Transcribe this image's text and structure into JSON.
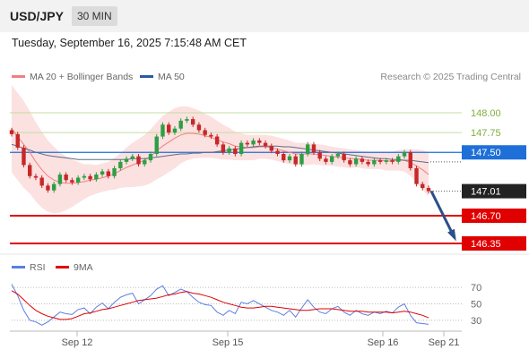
{
  "header": {
    "symbol": "USD/JPY",
    "timeframe": "30 MIN"
  },
  "datetime": "Tuesday, September 16, 2025 7:15:48 AM CET",
  "legend": {
    "ma20": {
      "label": "MA 20 + Bollinger Bands",
      "color": "#f08080"
    },
    "ma50": {
      "label": "MA 50",
      "color": "#2c5aa0"
    },
    "credit": "Research © 2025 Trading Central"
  },
  "rsi_legend": {
    "rsi": {
      "label": "RSI",
      "color": "#5b7fde"
    },
    "ma": {
      "label": "9MA",
      "color": "#e00000"
    }
  },
  "chart_data": {
    "type": "candlestick",
    "x_ticks": [
      "Sep 12",
      "Sep 15",
      "Sep 16",
      "Sep 21"
    ],
    "ylim": [
      146.25,
      148.2
    ],
    "levels": [
      {
        "label": "148.00",
        "value": 148.0,
        "kind": "resistance",
        "color": "#7fb03c"
      },
      {
        "label": "147.75",
        "value": 147.75,
        "kind": "resistance",
        "color": "#7fb03c"
      },
      {
        "label": "147.50",
        "value": 147.5,
        "kind": "pivot",
        "color": "#1e6fd8"
      },
      {
        "label": "147.01",
        "value": 147.01,
        "kind": "last",
        "color": "#222222"
      },
      {
        "label": "146.70",
        "value": 146.7,
        "kind": "support",
        "color": "#e00000"
      },
      {
        "label": "146.35",
        "value": 146.35,
        "kind": "support",
        "color": "#e00000"
      }
    ],
    "price": [
      147.73,
      147.56,
      147.34,
      147.2,
      147.18,
      147.08,
      147.02,
      147.1,
      147.22,
      147.15,
      147.12,
      147.18,
      147.2,
      147.16,
      147.22,
      147.26,
      147.2,
      147.3,
      147.38,
      147.42,
      147.45,
      147.35,
      147.4,
      147.48,
      147.7,
      147.85,
      147.75,
      147.8,
      147.9,
      147.92,
      147.85,
      147.78,
      147.72,
      147.7,
      147.6,
      147.5,
      147.55,
      147.48,
      147.62,
      147.6,
      147.65,
      147.62,
      147.58,
      147.52,
      147.48,
      147.4,
      147.45,
      147.35,
      147.48,
      147.6,
      147.5,
      147.42,
      147.38,
      147.45,
      147.48,
      147.4,
      147.35,
      147.42,
      147.38,
      147.35,
      147.4,
      147.38,
      147.4,
      147.38,
      147.45,
      147.5,
      147.3,
      147.1,
      147.05,
      147.01
    ],
    "ma20": [
      147.8,
      147.7,
      147.6,
      147.5,
      147.38,
      147.28,
      147.2,
      147.15,
      147.12,
      147.11,
      147.11,
      147.12,
      147.13,
      147.15,
      147.16,
      147.18,
      147.2,
      147.23,
      147.27,
      147.31,
      147.34,
      147.37,
      147.4,
      147.45,
      147.52,
      147.58,
      147.63,
      147.68,
      147.72,
      147.74,
      147.74,
      147.73,
      147.71,
      147.69,
      147.66,
      147.63,
      147.61,
      147.58,
      147.57,
      147.56,
      147.56,
      147.57,
      147.57,
      147.56,
      147.54,
      147.52,
      147.5,
      147.48,
      147.48,
      147.48,
      147.48,
      147.47,
      147.46,
      147.45,
      147.44,
      147.43,
      147.42,
      147.42,
      147.41,
      147.4,
      147.4,
      147.4,
      147.39,
      147.39,
      147.4,
      147.4,
      147.37,
      147.33,
      147.28,
      147.22
    ],
    "ma50": [
      147.6,
      147.58,
      147.55,
      147.53,
      147.5,
      147.48,
      147.46,
      147.45,
      147.44,
      147.43,
      147.42,
      147.41,
      147.41,
      147.41,
      147.41,
      147.41,
      147.41,
      147.41,
      147.41,
      147.41,
      147.42,
      147.42,
      147.42,
      147.43,
      147.44,
      147.45,
      147.46,
      147.47,
      147.48,
      147.48,
      147.49,
      147.49,
      147.5,
      147.5,
      147.51,
      147.52,
      147.53,
      147.54,
      147.55,
      147.56,
      147.57,
      147.58,
      147.58,
      147.58,
      147.58,
      147.57,
      147.57,
      147.56,
      147.55,
      147.54,
      147.53,
      147.52,
      147.51,
      147.5,
      147.49,
      147.48,
      147.47,
      147.46,
      147.45,
      147.44,
      147.43,
      147.42,
      147.42,
      147.41,
      147.41,
      147.4,
      147.4,
      147.39,
      147.38,
      147.37
    ],
    "bb_width": [
      0.55,
      0.55,
      0.55,
      0.52,
      0.5,
      0.48,
      0.45,
      0.42,
      0.38,
      0.34,
      0.3,
      0.26,
      0.22,
      0.2,
      0.18,
      0.18,
      0.18,
      0.2,
      0.22,
      0.25,
      0.28,
      0.3,
      0.32,
      0.34,
      0.36,
      0.38,
      0.38,
      0.38,
      0.36,
      0.34,
      0.32,
      0.3,
      0.28,
      0.26,
      0.24,
      0.22,
      0.2,
      0.18,
      0.17,
      0.16,
      0.16,
      0.15,
      0.15,
      0.15,
      0.15,
      0.15,
      0.15,
      0.14,
      0.14,
      0.14,
      0.13,
      0.13,
      0.13,
      0.12,
      0.12,
      0.12,
      0.12,
      0.11,
      0.11,
      0.11,
      0.11,
      0.11,
      0.12,
      0.12,
      0.13,
      0.14,
      0.17,
      0.21,
      0.25,
      0.28
    ],
    "rsi": {
      "ylim": [
        20,
        80
      ],
      "ticks": [
        70,
        50,
        30
      ],
      "rsi": [
        74,
        60,
        42,
        30,
        28,
        24,
        28,
        34,
        40,
        38,
        37,
        43,
        45,
        38,
        46,
        51,
        44,
        52,
        58,
        61,
        63,
        50,
        55,
        60,
        68,
        72,
        60,
        64,
        68,
        65,
        58,
        52,
        49,
        48,
        40,
        36,
        42,
        38,
        52,
        50,
        54,
        50,
        46,
        42,
        40,
        36,
        42,
        34,
        45,
        55,
        46,
        40,
        38,
        44,
        47,
        40,
        36,
        42,
        38,
        36,
        40,
        38,
        41,
        39,
        46,
        50,
        36,
        27,
        26,
        25
      ],
      "ma9": [
        66,
        62,
        55,
        48,
        42,
        38,
        35,
        33,
        31,
        31,
        32,
        35,
        38,
        39,
        41,
        43,
        44,
        46,
        48,
        50,
        52,
        54,
        55,
        56,
        57,
        59,
        61,
        62,
        64,
        65,
        63,
        62,
        60,
        58,
        55,
        52,
        50,
        48,
        46,
        45,
        45,
        46,
        47,
        47,
        46,
        45,
        44,
        43,
        42,
        42,
        43,
        44,
        44,
        44,
        43,
        42,
        41,
        41,
        41,
        40,
        40,
        40,
        40,
        39,
        40,
        41,
        40,
        38,
        36,
        33
      ]
    }
  }
}
